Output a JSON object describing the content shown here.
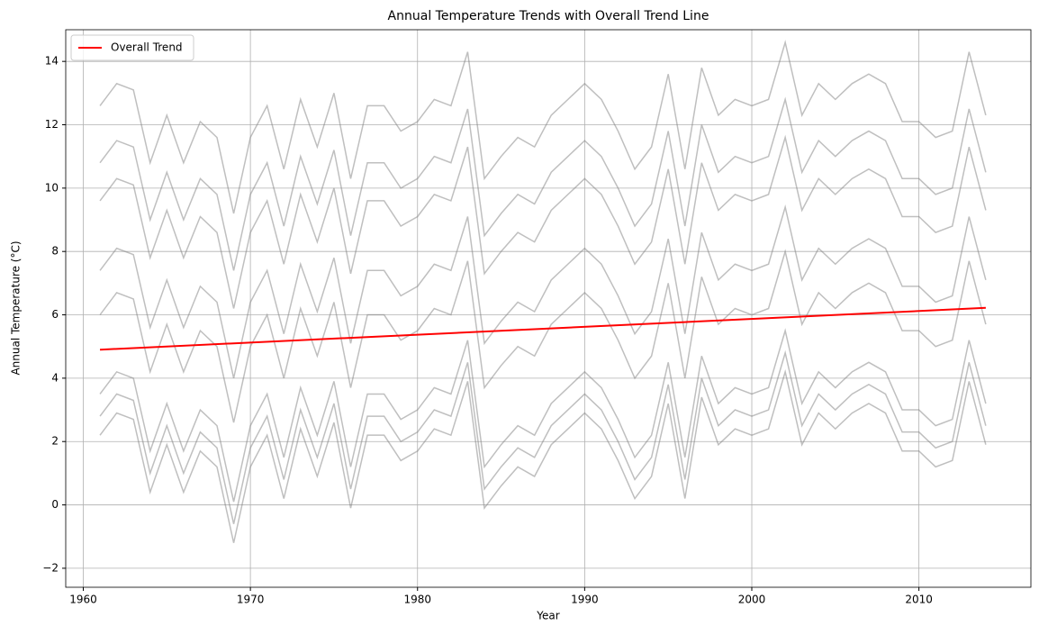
{
  "chart_data": {
    "type": "line",
    "title": "Annual Temperature Trends with Overall Trend Line",
    "xlabel": "Year",
    "ylabel": "Annual Temperature (°C)",
    "x": [
      1961,
      1962,
      1963,
      1964,
      1965,
      1966,
      1967,
      1968,
      1969,
      1970,
      1971,
      1972,
      1973,
      1974,
      1975,
      1976,
      1977,
      1978,
      1979,
      1980,
      1981,
      1982,
      1983,
      1984,
      1985,
      1986,
      1987,
      1988,
      1989,
      1990,
      1991,
      1992,
      1993,
      1994,
      1995,
      1996,
      1997,
      1998,
      1999,
      2000,
      2001,
      2002,
      2003,
      2004,
      2005,
      2006,
      2007,
      2008,
      2009,
      2010,
      2011,
      2012,
      2013,
      2014
    ],
    "series": [
      {
        "color": "#808080",
        "values": [
          2.8,
          3.5,
          3.3,
          1.0,
          2.5,
          1.0,
          2.3,
          1.8,
          -0.6,
          1.8,
          2.8,
          0.8,
          3.0,
          1.5,
          3.2,
          0.5,
          2.8,
          2.8,
          2.0,
          2.3,
          3.0,
          2.8,
          4.5,
          0.5,
          1.2,
          1.8,
          1.5,
          2.5,
          3.0,
          3.5,
          3.0,
          2.0,
          0.8,
          1.5,
          3.8,
          0.8,
          4.0,
          2.5,
          3.0,
          2.8,
          3.0,
          4.8,
          2.5,
          3.5,
          3.0,
          3.5,
          3.8,
          3.5,
          2.3,
          2.3,
          1.8,
          2.0,
          4.5,
          2.5
        ]
      },
      {
        "color": "#808080",
        "values": [
          3.5,
          4.2,
          4.0,
          1.7,
          3.2,
          1.7,
          3.0,
          2.5,
          0.1,
          2.5,
          3.5,
          1.5,
          3.7,
          2.2,
          3.9,
          1.2,
          3.5,
          3.5,
          2.7,
          3.0,
          3.7,
          3.5,
          5.2,
          1.2,
          1.9,
          2.5,
          2.2,
          3.2,
          3.7,
          4.2,
          3.7,
          2.7,
          1.5,
          2.2,
          4.5,
          1.5,
          4.7,
          3.2,
          3.7,
          3.5,
          3.7,
          5.5,
          3.2,
          4.2,
          3.7,
          4.2,
          4.5,
          4.2,
          3.0,
          3.0,
          2.5,
          2.7,
          5.2,
          3.2
        ]
      },
      {
        "color": "#808080",
        "values": [
          2.2,
          2.9,
          2.7,
          0.4,
          1.9,
          0.4,
          1.7,
          1.2,
          -1.2,
          1.2,
          2.2,
          0.2,
          2.4,
          0.9,
          2.6,
          -0.1,
          2.2,
          2.2,
          1.4,
          1.7,
          2.4,
          2.2,
          3.9,
          -0.1,
          0.6,
          1.2,
          0.9,
          1.9,
          2.4,
          2.9,
          2.4,
          1.4,
          0.2,
          0.9,
          3.2,
          0.2,
          3.4,
          1.9,
          2.4,
          2.2,
          2.4,
          4.2,
          1.9,
          2.9,
          2.4,
          2.9,
          3.2,
          2.9,
          1.7,
          1.7,
          1.2,
          1.4,
          3.9,
          1.9
        ]
      },
      {
        "color": "#808080",
        "values": [
          6.0,
          6.7,
          6.5,
          4.2,
          5.7,
          4.2,
          5.5,
          5.0,
          2.6,
          5.0,
          6.0,
          4.0,
          6.2,
          4.7,
          6.4,
          3.7,
          6.0,
          6.0,
          5.2,
          5.5,
          6.2,
          6.0,
          7.7,
          3.7,
          4.4,
          5.0,
          4.7,
          5.7,
          6.2,
          6.7,
          6.2,
          5.2,
          4.0,
          4.7,
          7.0,
          4.0,
          7.2,
          5.7,
          6.2,
          6.0,
          6.2,
          8.0,
          5.7,
          6.7,
          6.2,
          6.7,
          7.0,
          6.7,
          5.5,
          5.5,
          5.0,
          5.2,
          7.7,
          5.7
        ]
      },
      {
        "color": "#808080",
        "values": [
          7.4,
          8.1,
          7.9,
          5.6,
          7.1,
          5.6,
          6.9,
          6.4,
          4.0,
          6.4,
          7.4,
          5.4,
          7.6,
          6.1,
          7.8,
          5.1,
          7.4,
          7.4,
          6.6,
          6.9,
          7.6,
          7.4,
          9.1,
          5.1,
          5.8,
          6.4,
          6.1,
          7.1,
          7.6,
          8.1,
          7.6,
          6.6,
          5.4,
          6.1,
          8.4,
          5.4,
          8.6,
          7.1,
          7.6,
          7.4,
          7.6,
          9.4,
          7.1,
          8.1,
          7.6,
          8.1,
          8.4,
          8.1,
          6.9,
          6.9,
          6.4,
          6.6,
          9.1,
          7.1
        ]
      },
      {
        "color": "#808080",
        "values": [
          9.6,
          10.3,
          10.1,
          7.8,
          9.3,
          7.8,
          9.1,
          8.6,
          6.2,
          8.6,
          9.6,
          7.6,
          9.8,
          8.3,
          10.0,
          7.3,
          9.6,
          9.6,
          8.8,
          9.1,
          9.8,
          9.6,
          11.3,
          7.3,
          8.0,
          8.6,
          8.3,
          9.3,
          9.8,
          10.3,
          9.8,
          8.8,
          7.6,
          8.3,
          10.6,
          7.6,
          10.8,
          9.3,
          9.8,
          9.6,
          9.8,
          11.6,
          9.3,
          10.3,
          9.8,
          10.3,
          10.6,
          10.3,
          9.1,
          9.1,
          8.6,
          8.8,
          11.3,
          9.3
        ]
      },
      {
        "color": "#808080",
        "values": [
          10.8,
          11.5,
          11.3,
          9.0,
          10.5,
          9.0,
          10.3,
          9.8,
          7.4,
          9.8,
          10.8,
          8.8,
          11.0,
          9.5,
          11.2,
          8.5,
          10.8,
          10.8,
          10.0,
          10.3,
          11.0,
          10.8,
          12.5,
          8.5,
          9.2,
          9.8,
          9.5,
          10.5,
          11.0,
          11.5,
          11.0,
          10.0,
          8.8,
          9.5,
          11.8,
          8.8,
          12.0,
          10.5,
          11.0,
          10.8,
          11.0,
          12.8,
          10.5,
          11.5,
          11.0,
          11.5,
          11.8,
          11.5,
          10.3,
          10.3,
          9.8,
          10.0,
          12.5,
          10.5
        ]
      },
      {
        "color": "#808080",
        "values": [
          12.6,
          13.3,
          13.1,
          10.8,
          12.3,
          10.8,
          12.1,
          11.6,
          9.2,
          11.6,
          12.6,
          10.6,
          12.8,
          11.3,
          13.0,
          10.3,
          12.6,
          12.6,
          11.8,
          12.1,
          12.8,
          12.6,
          14.3,
          10.3,
          11.0,
          11.6,
          11.3,
          12.3,
          12.8,
          13.3,
          12.8,
          11.8,
          10.6,
          11.3,
          13.6,
          10.6,
          13.8,
          12.3,
          12.8,
          12.6,
          12.8,
          14.6,
          12.3,
          13.3,
          12.8,
          13.3,
          13.6,
          13.3,
          12.1,
          12.1,
          11.6,
          11.8,
          14.3,
          12.3
        ]
      },
      {
        "name": "Overall Trend",
        "color": "#ff0000",
        "x": [
          1961,
          2014
        ],
        "values": [
          4.9,
          6.22
        ]
      }
    ],
    "xlim": [
      1958.95,
      2016.7
    ],
    "xticks": [
      1960,
      1970,
      1980,
      1990,
      2000,
      2010
    ],
    "ylim": [
      -2.6,
      15
    ],
    "yticks": [
      {
        "value": -2,
        "label": "−2"
      },
      0,
      2,
      4,
      6,
      8,
      10,
      12,
      14
    ],
    "grid": true,
    "legend": "upper left"
  }
}
